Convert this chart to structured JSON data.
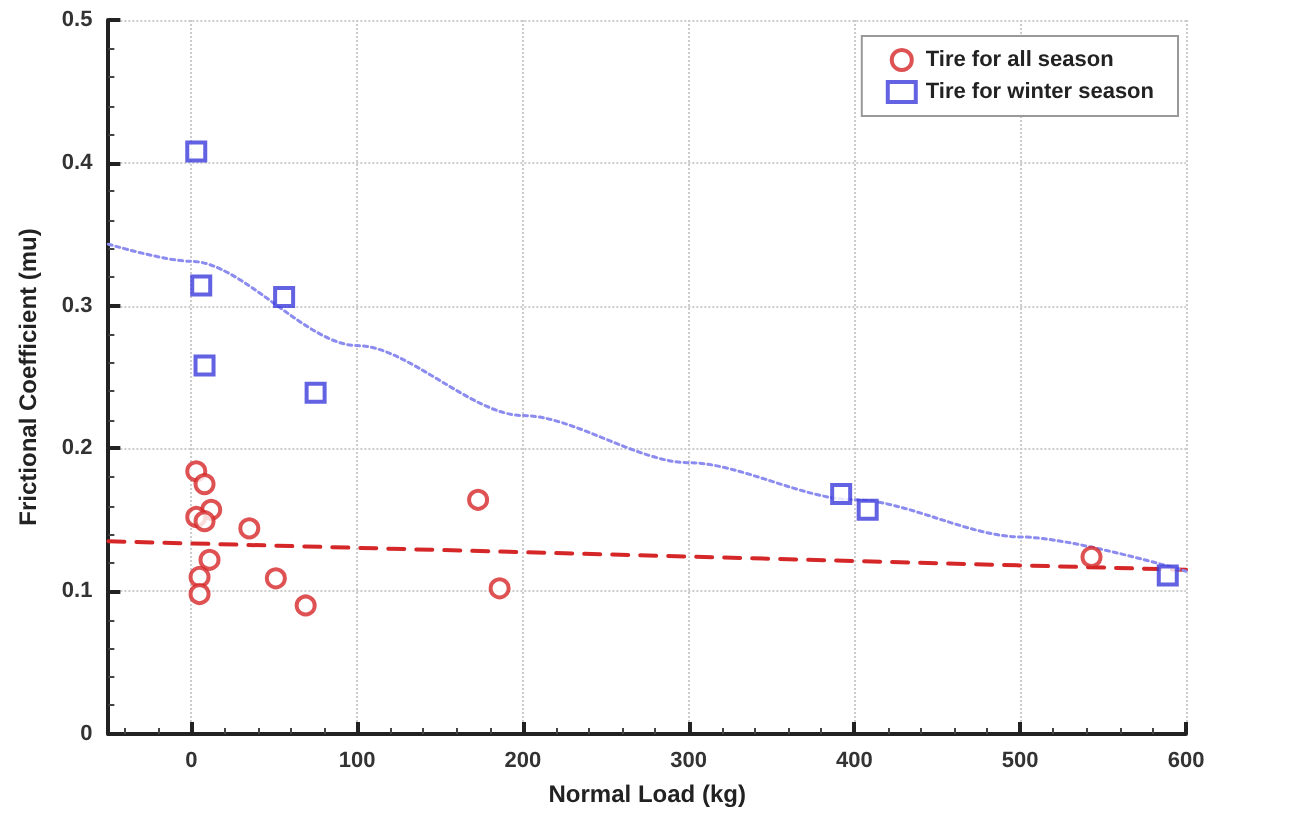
{
  "chart_data": {
    "type": "scatter",
    "xlabel": "Normal Load (kg)",
    "ylabel": "Frictional Coefficient (mu)",
    "xlim": [
      -50,
      600
    ],
    "xticks": [
      0,
      100,
      200,
      300,
      400,
      500,
      600
    ],
    "ylim": [
      0,
      0.5
    ],
    "yticks": [
      0,
      0.1,
      0.2,
      0.3,
      0.4,
      0.5
    ],
    "grid": true,
    "legend": "top right",
    "series": [
      {
        "name": "Tire for all season",
        "color": "#d62728",
        "marker": "circle",
        "x": [
          3,
          8,
          12,
          3,
          8,
          35,
          11,
          5,
          5,
          51,
          69,
          173,
          186,
          543
        ],
        "values": [
          0.184,
          0.175,
          0.157,
          0.152,
          0.149,
          0.144,
          0.122,
          0.11,
          0.098,
          0.109,
          0.09,
          0.164,
          0.102,
          0.124
        ]
      },
      {
        "name": "Tire for winter season",
        "color": "#3b3bdb",
        "marker": "square",
        "x": [
          3,
          6,
          8,
          56,
          75,
          392,
          408,
          589
        ],
        "values": [
          0.408,
          0.314,
          0.258,
          0.306,
          0.239,
          0.168,
          0.157,
          0.111
        ]
      },
      {
        "color": "#d62728",
        "type": "line",
        "line_style": "dashed",
        "marker": "none",
        "x": [
          -50,
          600
        ],
        "values": [
          0.135,
          0.115
        ]
      },
      {
        "color": "#8c8cf0",
        "type": "line",
        "line_style": "dotted",
        "marker": "none",
        "x": [
          -50,
          0,
          100,
          200,
          300,
          400,
          500,
          600
        ],
        "values": [
          0.343,
          0.331,
          0.272,
          0.223,
          0.19,
          0.164,
          0.138,
          0.114
        ]
      }
    ]
  }
}
